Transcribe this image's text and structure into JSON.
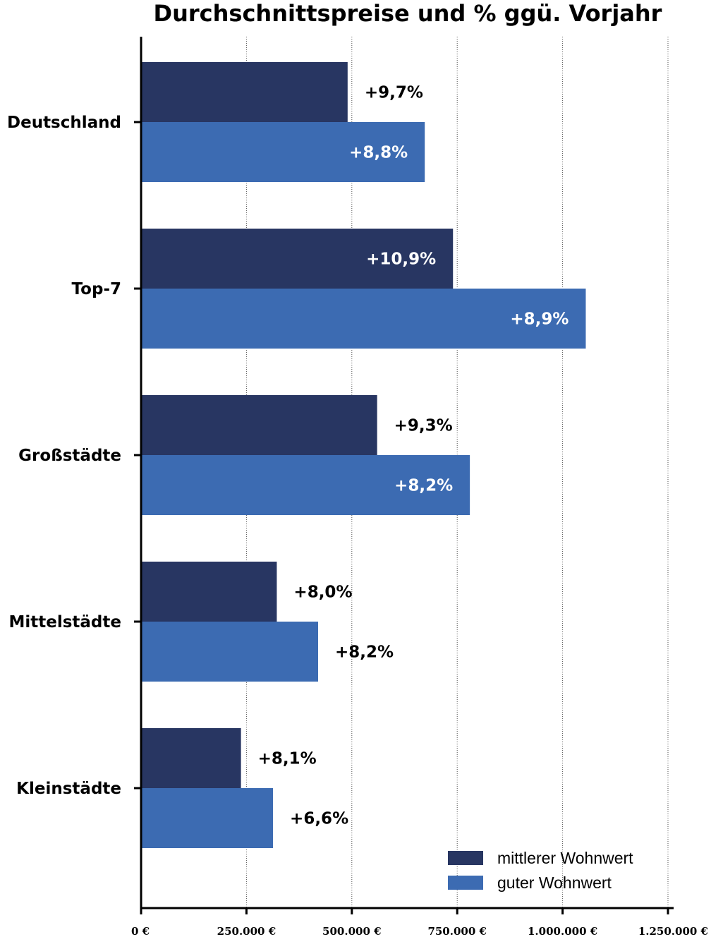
{
  "chart_data": {
    "type": "bar",
    "orientation": "horizontal",
    "title": "Durchschnittspreise und % ggü. Vorjahr",
    "categories": [
      "Deutschland",
      "Top-7",
      "Großstädte",
      "Mittelstädte",
      "Kleinstädte"
    ],
    "series": [
      {
        "name": "mittlerer Wohnwert",
        "color": "#283662",
        "values": [
          490000,
          740000,
          560000,
          322000,
          237000
        ],
        "labels": [
          "+9,7%",
          "+10,9%",
          "+9,3%",
          "+8,0%",
          "+8,1%"
        ],
        "label_inside": [
          false,
          true,
          false,
          false,
          false
        ]
      },
      {
        "name": "guter Wohnwert",
        "color": "#3c6bb2",
        "values": [
          673000,
          1055000,
          780000,
          420000,
          313000
        ],
        "labels": [
          "+8,8%",
          "+8,9%",
          "+8,2%",
          "+8,2%",
          "+6,6%"
        ],
        "label_inside": [
          true,
          true,
          true,
          false,
          false
        ]
      }
    ],
    "xlim": [
      0,
      1250000
    ],
    "x_ticks": [
      0,
      250000,
      500000,
      750000,
      1000000,
      1250000
    ],
    "x_tick_labels": [
      "0 €",
      "250.000 €",
      "500.000 €",
      "750.000 €",
      "1.000.000 €",
      "1.250.000 €"
    ],
    "grid": "vertical dotted",
    "legend_position": "bottom-right"
  }
}
